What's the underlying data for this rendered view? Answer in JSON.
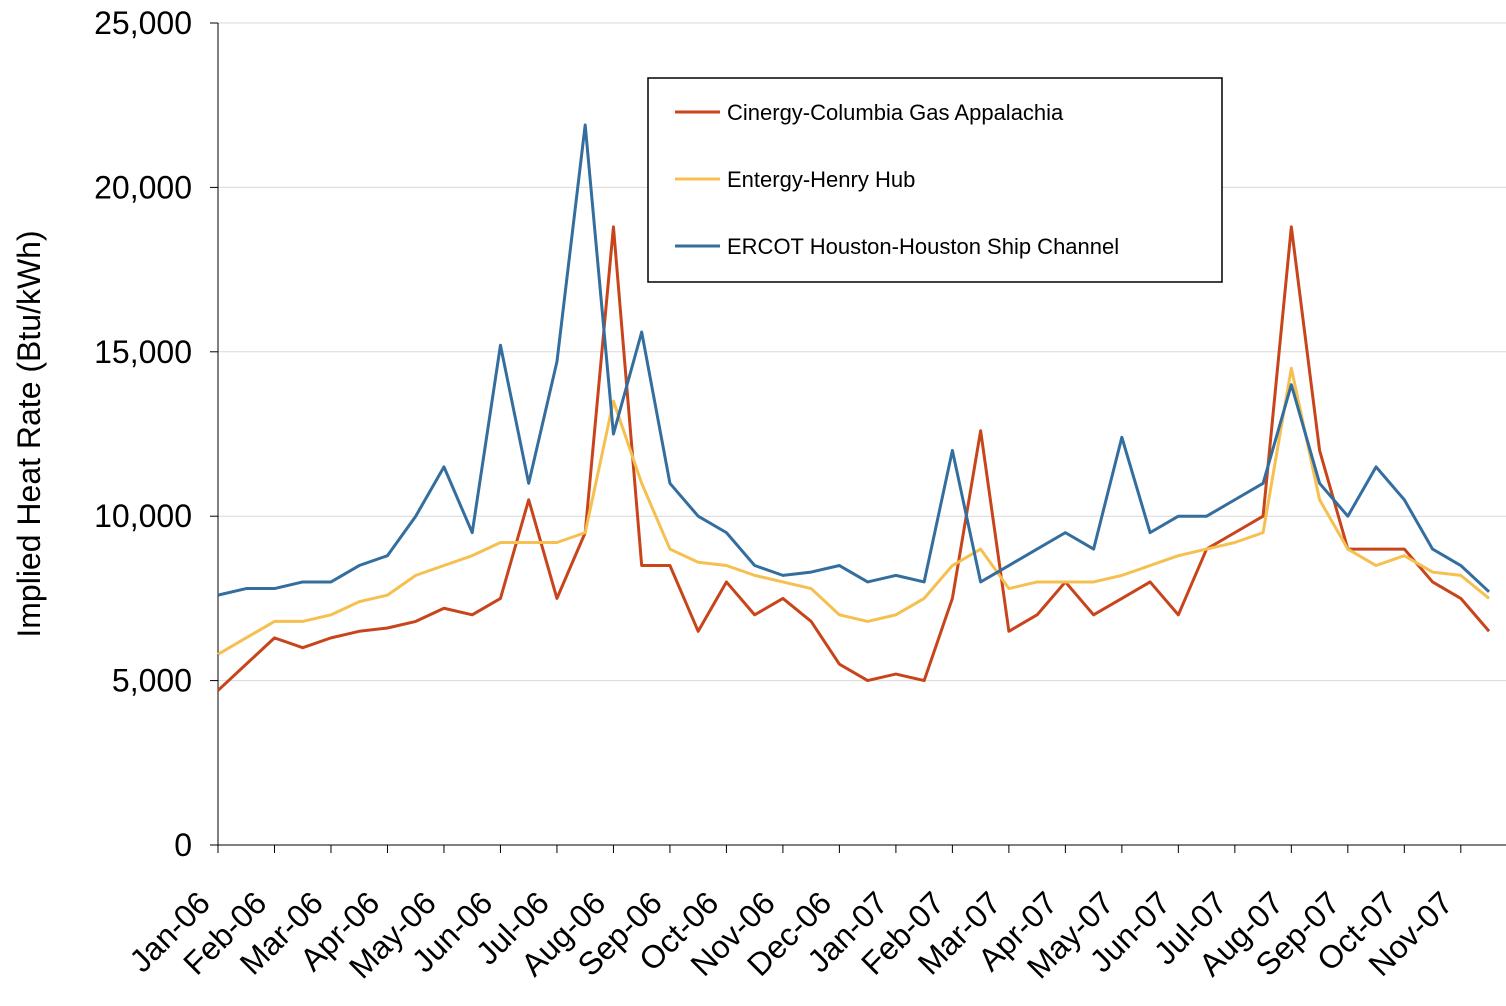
{
  "chart_data": {
    "type": "line",
    "y_label": "Implied Heat Rate (Btu/kWh)",
    "x": [
      0,
      0.5,
      1,
      1.5,
      2,
      2.5,
      3,
      3.5,
      4,
      4.5,
      5,
      5.5,
      6,
      6.5,
      7,
      7.5,
      8,
      8.5,
      9,
      9.5,
      10,
      10.5,
      11,
      11.5,
      12,
      12.5,
      13,
      13.5,
      14,
      14.5,
      15,
      15.5,
      16,
      16.5,
      17,
      17.5,
      18,
      18.5,
      19,
      19.5,
      20,
      20.5,
      21,
      21.5,
      22,
      22.5
    ],
    "xlim": [
      0,
      22.8
    ],
    "xticks": [
      {
        "value": 0,
        "label": "Jan-06"
      },
      {
        "value": 1,
        "label": "Feb-06"
      },
      {
        "value": 2,
        "label": "Mar-06"
      },
      {
        "value": 3,
        "label": "Apr-06"
      },
      {
        "value": 4,
        "label": "May-06"
      },
      {
        "value": 5,
        "label": "Jun-06"
      },
      {
        "value": 6,
        "label": "Jul-06"
      },
      {
        "value": 7,
        "label": "Aug-06"
      },
      {
        "value": 8,
        "label": "Sep-06"
      },
      {
        "value": 9,
        "label": "Oct-06"
      },
      {
        "value": 10,
        "label": "Nov-06"
      },
      {
        "value": 11,
        "label": "Dec-06"
      },
      {
        "value": 12,
        "label": "Jan-07"
      },
      {
        "value": 13,
        "label": "Feb-07"
      },
      {
        "value": 14,
        "label": "Mar-07"
      },
      {
        "value": 15,
        "label": "Apr-07"
      },
      {
        "value": 16,
        "label": "May-07"
      },
      {
        "value": 17,
        "label": "Jun-07"
      },
      {
        "value": 18,
        "label": "Jul-07"
      },
      {
        "value": 19,
        "label": "Aug-07"
      },
      {
        "value": 20,
        "label": "Sep-07"
      },
      {
        "value": 21,
        "label": "Oct-07"
      },
      {
        "value": 22,
        "label": "Nov-07"
      }
    ],
    "ylim": [
      0,
      25000
    ],
    "yticks": [
      0,
      {
        "value": 5000,
        "label": "5,000"
      },
      {
        "value": 10000,
        "label": "10,000"
      },
      {
        "value": 15000,
        "label": "15,000"
      },
      {
        "value": 20000,
        "label": "20,000"
      },
      {
        "value": 25000,
        "label": "25,000"
      }
    ],
    "grid": true,
    "series": [
      {
        "name": "Cinergy-Columbia Gas Appalachia",
        "color": "#c8451c",
        "values": [
          4700,
          5500,
          6300,
          6000,
          6300,
          6500,
          6600,
          6800,
          7200,
          7000,
          7500,
          10500,
          7500,
          9500,
          18800,
          8500,
          8500,
          6500,
          8000,
          7000,
          7500,
          6800,
          5500,
          5000,
          5200,
          5000,
          7500,
          12600,
          6500,
          7000,
          8000,
          7000,
          7500,
          8000,
          7000,
          9000,
          9500,
          10000,
          18800,
          12000,
          9000,
          9000,
          9000,
          8000,
          7500,
          6500
        ]
      },
      {
        "name": "Entergy-Henry Hub",
        "color": "#f5c04f",
        "values": [
          5800,
          6300,
          6800,
          6800,
          7000,
          7400,
          7600,
          8200,
          8500,
          8800,
          9200,
          9200,
          9200,
          9500,
          13500,
          11000,
          9000,
          8600,
          8500,
          8200,
          8000,
          7800,
          7000,
          6800,
          7000,
          7500,
          8500,
          9000,
          7800,
          8000,
          8000,
          8000,
          8200,
          8500,
          8800,
          9000,
          9200,
          9500,
          14500,
          10500,
          9000,
          8500,
          8800,
          8300,
          8200,
          7500
        ]
      },
      {
        "name": "ERCOT Houston-Houston Ship Channel",
        "color": "#336e9e",
        "values": [
          7600,
          7800,
          7800,
          8000,
          8000,
          8500,
          8800,
          10000,
          11500,
          9500,
          15200,
          11000,
          14700,
          21900,
          12500,
          15600,
          11000,
          10000,
          9500,
          8500,
          8200,
          8300,
          8500,
          8000,
          8200,
          8000,
          12000,
          8000,
          8500,
          9000,
          9500,
          9000,
          12400,
          9500,
          10000,
          10000,
          10500,
          11000,
          14000,
          11000,
          10000,
          11500,
          10500,
          9000,
          8500,
          7700
        ]
      }
    ]
  }
}
